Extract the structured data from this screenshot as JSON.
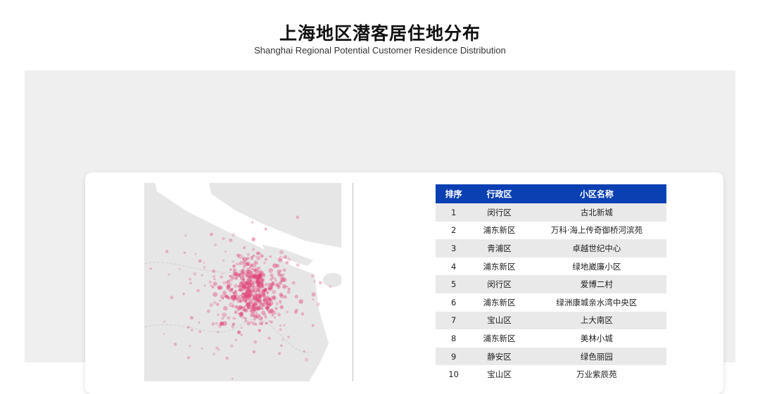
{
  "header": {
    "title": "上海地区潜客居住地分布",
    "subtitle": "Shanghai Regional Potential Customer Residence Distribution"
  },
  "colors": {
    "header_bg": "#0b40b3",
    "dot": "#e0457a",
    "land": "#e6e6e6"
  },
  "map": {
    "name": "shanghai-customer-density-map"
  },
  "table": {
    "headers": [
      "排序",
      "行政区",
      "小区名称"
    ],
    "rows": [
      {
        "rank": "1",
        "district": "闵行区",
        "community": "古北新城"
      },
      {
        "rank": "2",
        "district": "浦东新区",
        "community": "万科·海上传奇御桥河滨苑"
      },
      {
        "rank": "3",
        "district": "青浦区",
        "community": "卓越世纪中心"
      },
      {
        "rank": "4",
        "district": "浦东新区",
        "community": "绿地崴廉小区"
      },
      {
        "rank": "5",
        "district": "闵行区",
        "community": "爱博二村"
      },
      {
        "rank": "6",
        "district": "浦东新区",
        "community": "绿洲康城亲水湾中央区"
      },
      {
        "rank": "7",
        "district": "宝山区",
        "community": "上大南区"
      },
      {
        "rank": "8",
        "district": "浦东新区",
        "community": "美林小城"
      },
      {
        "rank": "9",
        "district": "静安区",
        "community": "绿色丽园"
      },
      {
        "rank": "10",
        "district": "宝山区",
        "community": "万业紫辰苑"
      }
    ]
  }
}
